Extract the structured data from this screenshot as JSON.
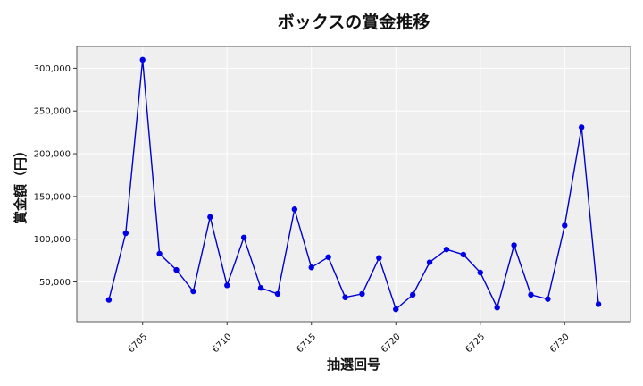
{
  "chart_data": {
    "type": "line",
    "title": "ボックスの賞金推移",
    "xlabel": "抽選回号",
    "ylabel": "賞金額（円）",
    "grid": true,
    "xlim": [
      6701.1,
      6733.9
    ],
    "ylim": [
      3500,
      325500
    ],
    "xticks": [
      6705,
      6710,
      6715,
      6720,
      6725,
      6730
    ],
    "yticks": [
      50000,
      100000,
      150000,
      200000,
      250000,
      300000
    ],
    "ytick_labels": [
      "50,000",
      "100,000",
      "150,000",
      "200,000",
      "250,000",
      "300,000"
    ],
    "series_color": "#0000e6",
    "background_color": "#efefef",
    "x": [
      6703,
      6704,
      6705,
      6706,
      6707,
      6708,
      6709,
      6710,
      6711,
      6712,
      6713,
      6714,
      6715,
      6716,
      6717,
      6718,
      6719,
      6720,
      6721,
      6722,
      6723,
      6724,
      6725,
      6726,
      6727,
      6728,
      6729,
      6730,
      6731,
      6732
    ],
    "y": [
      29000,
      107000,
      310000,
      83000,
      64000,
      39000,
      126000,
      46000,
      102000,
      43000,
      36000,
      135000,
      67000,
      79000,
      32000,
      36000,
      78000,
      18000,
      35000,
      73000,
      88000,
      82000,
      61000,
      20000,
      93000,
      35000,
      30000,
      116000,
      231000,
      24000
    ]
  }
}
